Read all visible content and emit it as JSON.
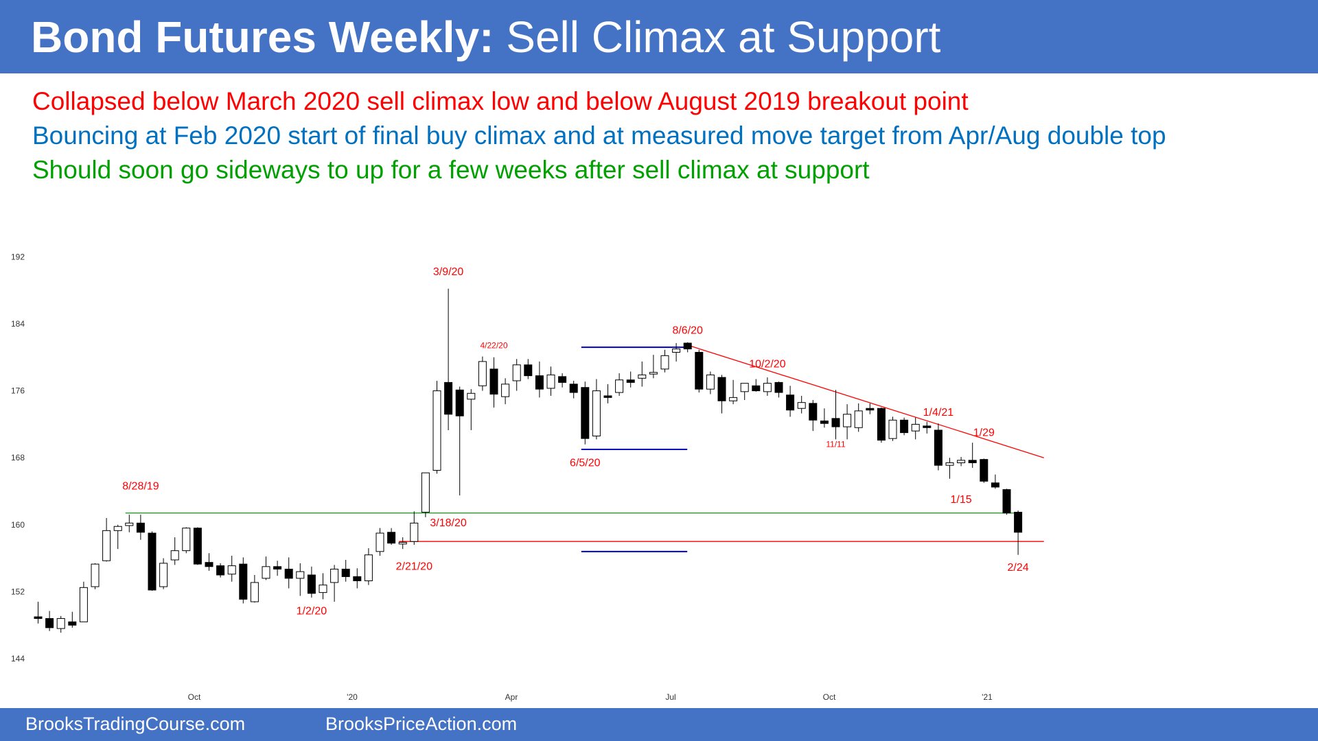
{
  "header": {
    "title_bold": "Bond Futures Weekly:",
    "title_rest": " Sell Climax at Support",
    "background_color": "#4472c4"
  },
  "notes": [
    {
      "text": "Collapsed below March 2020 sell climax low and below August 2019 breakout point",
      "color": "#ff0000"
    },
    {
      "text": "Bouncing at Feb 2020 start of final buy climax and at measured move target from Apr/Aug double top",
      "color": "#0070c0"
    },
    {
      "text": "Should soon go sideways to up for a few weeks after sell climax at support",
      "color": "#00a000"
    }
  ],
  "footer": {
    "left": "BrooksTradingCourse.com",
    "right": "BrooksPriceAction.com"
  },
  "chart_data": {
    "type": "candlestick",
    "y_ticks": [
      144,
      152,
      160,
      168,
      176,
      184,
      192
    ],
    "ylim": [
      144,
      192
    ],
    "x_ticks": [
      {
        "label": "Oct",
        "i": 9
      },
      {
        "label": "'20",
        "i": 19
      },
      {
        "label": "Apr",
        "i": 29
      },
      {
        "label": "Jul",
        "i": 39
      },
      {
        "label": "Oct",
        "i": 49
      },
      {
        "label": "'21",
        "i": 59
      }
    ],
    "candles": [
      {
        "o": 149.0,
        "h": 150.8,
        "l": 148.2,
        "c": 148.8
      },
      {
        "o": 148.8,
        "h": 149.7,
        "l": 147.3,
        "c": 147.7
      },
      {
        "o": 147.6,
        "h": 149.1,
        "l": 147.1,
        "c": 148.8
      },
      {
        "o": 148.4,
        "h": 149.6,
        "l": 147.7,
        "c": 148.0
      },
      {
        "o": 148.4,
        "h": 153.2,
        "l": 148.4,
        "c": 152.5
      },
      {
        "o": 152.6,
        "h": 155.4,
        "l": 152.3,
        "c": 155.3
      },
      {
        "o": 155.7,
        "h": 160.8,
        "l": 155.6,
        "c": 159.3
      },
      {
        "o": 159.3,
        "h": 160.0,
        "l": 157.1,
        "c": 159.8
      },
      {
        "o": 159.9,
        "h": 161.2,
        "l": 159.1,
        "c": 160.2
      },
      {
        "o": 160.2,
        "h": 161.2,
        "l": 158.2,
        "c": 159.1
      },
      {
        "o": 159.0,
        "h": 159.2,
        "l": 152.1,
        "c": 152.2
      },
      {
        "o": 152.6,
        "h": 156.0,
        "l": 152.3,
        "c": 155.4
      },
      {
        "o": 155.8,
        "h": 158.5,
        "l": 155.2,
        "c": 156.9
      },
      {
        "o": 156.9,
        "h": 159.7,
        "l": 156.6,
        "c": 159.6
      },
      {
        "o": 159.6,
        "h": 159.7,
        "l": 155.2,
        "c": 155.3
      },
      {
        "o": 155.5,
        "h": 156.6,
        "l": 154.5,
        "c": 155.0
      },
      {
        "o": 155.1,
        "h": 155.4,
        "l": 153.7,
        "c": 154.0
      },
      {
        "o": 154.1,
        "h": 156.3,
        "l": 153.2,
        "c": 155.1
      },
      {
        "o": 155.3,
        "h": 156.1,
        "l": 150.6,
        "c": 151.1
      },
      {
        "o": 150.8,
        "h": 154.0,
        "l": 150.7,
        "c": 153.1
      },
      {
        "o": 153.6,
        "h": 156.2,
        "l": 153.4,
        "c": 155.0
      },
      {
        "o": 155.0,
        "h": 155.7,
        "l": 153.9,
        "c": 154.7
      },
      {
        "o": 154.7,
        "h": 156.1,
        "l": 152.4,
        "c": 153.6
      },
      {
        "o": 153.6,
        "h": 155.4,
        "l": 151.5,
        "c": 154.4
      },
      {
        "o": 154.0,
        "h": 155.0,
        "l": 151.3,
        "c": 151.8
      },
      {
        "o": 151.9,
        "h": 154.2,
        "l": 151.1,
        "c": 152.8
      },
      {
        "o": 153.1,
        "h": 155.2,
        "l": 150.8,
        "c": 154.7
      },
      {
        "o": 154.7,
        "h": 155.8,
        "l": 153.2,
        "c": 153.8
      },
      {
        "o": 153.8,
        "h": 154.8,
        "l": 152.4,
        "c": 153.3
      },
      {
        "o": 153.3,
        "h": 157.2,
        "l": 152.8,
        "c": 156.4
      },
      {
        "o": 156.8,
        "h": 159.6,
        "l": 156.3,
        "c": 159.0
      },
      {
        "o": 159.1,
        "h": 159.6,
        "l": 157.6,
        "c": 157.8
      },
      {
        "o": 157.7,
        "h": 158.5,
        "l": 157.1,
        "c": 157.9
      },
      {
        "o": 158.0,
        "h": 161.6,
        "l": 157.6,
        "c": 160.2
      },
      {
        "o": 161.5,
        "h": 166.2,
        "l": 160.9,
        "c": 166.2
      },
      {
        "o": 166.5,
        "h": 177.2,
        "l": 166.1,
        "c": 176.0
      },
      {
        "o": 177.0,
        "h": 188.2,
        "l": 171.3,
        "c": 173.2
      },
      {
        "o": 176.1,
        "h": 176.5,
        "l": 163.5,
        "c": 173.0
      },
      {
        "o": 175.0,
        "h": 176.2,
        "l": 171.3,
        "c": 175.7
      },
      {
        "o": 176.6,
        "h": 180.1,
        "l": 176.0,
        "c": 179.5
      },
      {
        "o": 178.6,
        "h": 180.0,
        "l": 174.0,
        "c": 175.6
      },
      {
        "o": 175.3,
        "h": 177.5,
        "l": 174.4,
        "c": 176.8
      },
      {
        "o": 177.2,
        "h": 179.8,
        "l": 176.0,
        "c": 179.1
      },
      {
        "o": 179.1,
        "h": 179.8,
        "l": 177.4,
        "c": 177.8
      },
      {
        "o": 177.8,
        "h": 179.5,
        "l": 175.2,
        "c": 176.2
      },
      {
        "o": 176.3,
        "h": 178.9,
        "l": 175.4,
        "c": 177.9
      },
      {
        "o": 177.7,
        "h": 178.1,
        "l": 176.4,
        "c": 177.0
      },
      {
        "o": 176.8,
        "h": 177.2,
        "l": 175.1,
        "c": 175.8
      },
      {
        "o": 176.4,
        "h": 177.1,
        "l": 169.6,
        "c": 170.3
      },
      {
        "o": 170.6,
        "h": 177.4,
        "l": 170.2,
        "c": 176.0
      },
      {
        "o": 175.4,
        "h": 176.8,
        "l": 174.5,
        "c": 175.2
      },
      {
        "o": 175.8,
        "h": 178.1,
        "l": 175.4,
        "c": 177.3
      },
      {
        "o": 177.3,
        "h": 178.3,
        "l": 176.4,
        "c": 177.0
      },
      {
        "o": 177.5,
        "h": 179.5,
        "l": 176.5,
        "c": 177.9
      },
      {
        "o": 178.0,
        "h": 180.3,
        "l": 177.5,
        "c": 178.2
      },
      {
        "o": 178.6,
        "h": 180.9,
        "l": 178.2,
        "c": 180.2
      },
      {
        "o": 180.6,
        "h": 181.7,
        "l": 179.5,
        "c": 181.0
      },
      {
        "o": 181.7,
        "h": 181.8,
        "l": 180.6,
        "c": 181.0
      },
      {
        "o": 180.6,
        "h": 180.9,
        "l": 175.8,
        "c": 176.2
      },
      {
        "o": 176.2,
        "h": 178.3,
        "l": 175.6,
        "c": 177.9
      },
      {
        "o": 177.6,
        "h": 177.9,
        "l": 173.3,
        "c": 174.8
      },
      {
        "o": 174.8,
        "h": 177.3,
        "l": 174.4,
        "c": 175.2
      },
      {
        "o": 175.9,
        "h": 176.8,
        "l": 174.9,
        "c": 176.9
      },
      {
        "o": 176.6,
        "h": 177.4,
        "l": 175.9,
        "c": 176.0
      },
      {
        "o": 175.9,
        "h": 177.6,
        "l": 175.4,
        "c": 176.9
      },
      {
        "o": 177.0,
        "h": 177.1,
        "l": 175.2,
        "c": 175.8
      },
      {
        "o": 175.5,
        "h": 176.6,
        "l": 172.9,
        "c": 173.7
      },
      {
        "o": 173.9,
        "h": 175.4,
        "l": 173.3,
        "c": 174.6
      },
      {
        "o": 174.5,
        "h": 174.9,
        "l": 171.2,
        "c": 172.5
      },
      {
        "o": 172.4,
        "h": 173.9,
        "l": 171.6,
        "c": 172.1
      },
      {
        "o": 172.7,
        "h": 176.1,
        "l": 170.2,
        "c": 171.7
      },
      {
        "o": 171.7,
        "h": 174.4,
        "l": 170.2,
        "c": 173.2
      },
      {
        "o": 171.6,
        "h": 174.5,
        "l": 171.1,
        "c": 173.6
      },
      {
        "o": 173.9,
        "h": 174.5,
        "l": 173.2,
        "c": 173.7
      },
      {
        "o": 173.9,
        "h": 174.0,
        "l": 169.8,
        "c": 170.1
      },
      {
        "o": 170.3,
        "h": 172.9,
        "l": 170.0,
        "c": 172.5
      },
      {
        "o": 172.5,
        "h": 172.8,
        "l": 170.7,
        "c": 171.0
      },
      {
        "o": 171.2,
        "h": 172.8,
        "l": 170.2,
        "c": 172.0
      },
      {
        "o": 171.8,
        "h": 172.3,
        "l": 170.9,
        "c": 171.6
      },
      {
        "o": 171.3,
        "h": 172.1,
        "l": 166.5,
        "c": 167.1
      },
      {
        "o": 167.1,
        "h": 168.0,
        "l": 165.5,
        "c": 167.4
      },
      {
        "o": 167.4,
        "h": 168.1,
        "l": 167.0,
        "c": 167.7
      },
      {
        "o": 167.7,
        "h": 169.8,
        "l": 166.8,
        "c": 167.4
      },
      {
        "o": 167.8,
        "h": 167.9,
        "l": 165.0,
        "c": 165.2
      },
      {
        "o": 165.0,
        "h": 166.0,
        "l": 164.3,
        "c": 164.5
      },
      {
        "o": 164.2,
        "h": 164.3,
        "l": 161.2,
        "c": 161.4
      },
      {
        "o": 161.5,
        "h": 161.7,
        "l": 156.4,
        "c": 159.1
      }
    ],
    "annotations": [
      {
        "label": "8/28/19",
        "i": 9,
        "price": 164.2
      },
      {
        "label": "1/2/20",
        "i": 24,
        "price": 149.3
      },
      {
        "label": "2/21/20",
        "i": 33,
        "price": 154.6
      },
      {
        "label": "3/18/20",
        "i": 36,
        "price": 159.8
      },
      {
        "label": "3/9/20",
        "i": 36,
        "price": 189.8
      },
      {
        "label": "4/22/20",
        "i": 40,
        "price": 181.1
      },
      {
        "label": "6/5/20",
        "i": 48,
        "price": 167.0
      },
      {
        "label": "8/6/20",
        "i": 57,
        "price": 182.8
      },
      {
        "label": "10/2/20",
        "i": 64,
        "price": 178.8
      },
      {
        "label": "11/11",
        "i": 70,
        "price": 169.3
      },
      {
        "label": "1/4/21",
        "i": 79,
        "price": 173.0
      },
      {
        "label": "1/29",
        "i": 83,
        "price": 170.6
      },
      {
        "label": "1/15",
        "i": 81,
        "price": 162.6
      },
      {
        "label": "2/24",
        "i": 86,
        "price": 154.5
      }
    ],
    "support_lines": [
      {
        "price": 161.4,
        "from_i": 8,
        "to_i": 86.2,
        "color": "#00a000"
      },
      {
        "price": 158.0,
        "from_i": 32,
        "to_i": 88.6,
        "color": "#ff0000"
      }
    ],
    "trend_line": {
      "from_i": 57,
      "from_price": 181.6,
      "to_i": 88.6,
      "to_price": 168.0,
      "color": "#ff0000"
    },
    "measured_move": [
      {
        "price": 181.2,
        "from_i": 48,
        "to_i": 57.3
      },
      {
        "price": 169.0,
        "from_i": 48,
        "to_i": 57.3
      },
      {
        "price": 156.8,
        "from_i": 48,
        "to_i": 57.3
      }
    ],
    "measured_move_color": "#0000c0"
  }
}
